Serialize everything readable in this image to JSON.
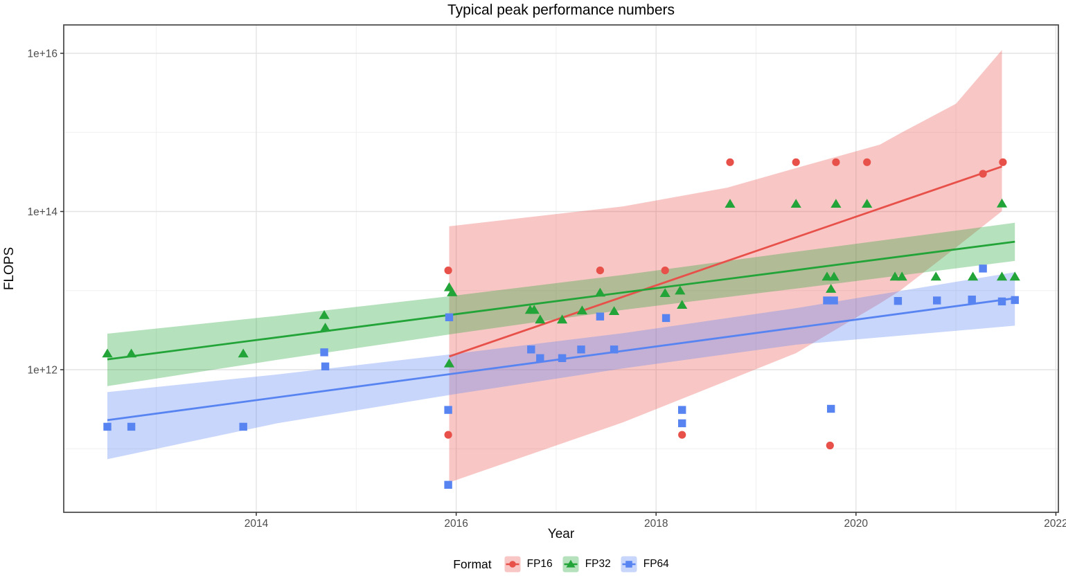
{
  "page": {
    "title": "Typical peak performance numbers"
  },
  "chart_data": {
    "type": "scatter",
    "title": "Typical peak performance numbers",
    "xlabel": "Year",
    "ylabel": "FLOPS",
    "x_ticks": [
      2014,
      2016,
      2018,
      2020,
      2022
    ],
    "x_minor": [
      2013,
      2015,
      2017,
      2019,
      2021
    ],
    "y_ticks": [
      {
        "label": "1e+12",
        "value": 1000000000000.0
      },
      {
        "label": "1e+14",
        "value": 100000000000000.0
      },
      {
        "label": "1e+16",
        "value": 1e+16
      }
    ],
    "y_minor": [
      100000000000.0,
      10000000000000.0,
      1000000000000000.0
    ],
    "xlim": [
      2012.07,
      2022.03
    ],
    "ylim": [
      16000000000.0,
      2.3e+16
    ],
    "y_scale": "log10",
    "grid": true,
    "legend": {
      "title": "Format",
      "position": "bottom"
    },
    "series": [
      {
        "name": "FP16",
        "marker": "circle",
        "color": "#E8504A",
        "ribbon_color": "rgba(232,80,74,0.32)",
        "points": [
          [
            2015.92,
            18000000000000.0
          ],
          [
            2015.92,
            150000000000.0
          ],
          [
            2017.44,
            18000000000000.0
          ],
          [
            2018.09,
            18000000000000.0
          ],
          [
            2018.26,
            150000000000.0
          ],
          [
            2018.74,
            420000000000000.0
          ],
          [
            2019.4,
            420000000000000.0
          ],
          [
            2019.74,
            110000000000.0
          ],
          [
            2019.8,
            420000000000000.0
          ],
          [
            2020.11,
            420000000000000.0
          ],
          [
            2021.27,
            300000000000000.0
          ],
          [
            2021.47,
            420000000000000.0
          ]
        ],
        "trend": {
          "x": [
            2015.93,
            2021.46
          ],
          "y": [
            1470000000000.0,
            370000000000000.0
          ]
        },
        "ribbon": {
          "x": [
            2015.93,
            2017.67,
            2018.71,
            2019.4,
            2020.24,
            2020.44,
            2021.0,
            2021.46
          ],
          "upper": [
            65000000000000.0,
            116000000000000.0,
            200000000000000.0,
            354000000000000.0,
            700000000000000.0,
            970000000000000.0,
            2300000000000000.0,
            1.1e+16
          ],
          "lower": [
            37500000000.0,
            216000000000.0,
            724000000000.0,
            1620000000000.0,
            6900000000000.0,
            9950000000000.0,
            35000000000000.0,
            101000000000000.0
          ]
        }
      },
      {
        "name": "FP32",
        "marker": "triangle",
        "color": "#22A438",
        "ribbon_color": "rgba(34,164,56,0.33)",
        "points": [
          [
            2012.51,
            1600000000000.0
          ],
          [
            2012.75,
            1600000000000.0
          ],
          [
            2013.87,
            1600000000000.0
          ],
          [
            2014.68,
            4900000000000.0
          ],
          [
            2014.69,
            3400000000000.0
          ],
          [
            2015.93,
            11000000000000.0
          ],
          [
            2015.96,
            9500000000000.0
          ],
          [
            2015.93,
            1200000000000.0
          ],
          [
            2016.74,
            5700000000000.0
          ],
          [
            2016.78,
            5700000000000.0
          ],
          [
            2016.84,
            4300000000000.0
          ],
          [
            2017.06,
            4300000000000.0
          ],
          [
            2017.26,
            5600000000000.0
          ],
          [
            2017.44,
            9400000000000.0
          ],
          [
            2017.58,
            5500000000000.0
          ],
          [
            2018.09,
            9300000000000.0
          ],
          [
            2018.24,
            10000000000000.0
          ],
          [
            2018.26,
            6600000000000.0
          ],
          [
            2018.74,
            125000000000000.0
          ],
          [
            2019.4,
            125000000000000.0
          ],
          [
            2019.71,
            15000000000000.0
          ],
          [
            2019.75,
            10500000000000.0
          ],
          [
            2019.78,
            15000000000000.0
          ],
          [
            2019.8,
            125000000000000.0
          ],
          [
            2020.11,
            125000000000000.0
          ],
          [
            2020.39,
            15000000000000.0
          ],
          [
            2020.46,
            15000000000000.0
          ],
          [
            2020.8,
            15000000000000.0
          ],
          [
            2021.17,
            15000000000000.0
          ],
          [
            2021.46,
            126000000000000.0
          ],
          [
            2021.46,
            15000000000000.0
          ],
          [
            2021.59,
            15000000000000.0
          ]
        ],
        "trend": {
          "x": [
            2012.51,
            2021.59
          ],
          "y": [
            1350000000000.0,
            41500000000000.0
          ]
        },
        "ribbon": {
          "x": [
            2012.51,
            2014.21,
            2015.94,
            2017.67,
            2019.4,
            2021.59
          ],
          "upper": [
            2850000000000.0,
            4800000000000.0,
            8500000000000.0,
            15800000000000.0,
            31000000000000.0,
            72000000000000.0
          ],
          "lower": [
            620000000000.0,
            1330000000000.0,
            2800000000000.0,
            5700000000000.0,
            10600000000000.0,
            23700000000000.0
          ]
        }
      },
      {
        "name": "FP64",
        "marker": "square",
        "color": "#5884F2",
        "ribbon_color": "rgba(88,132,242,0.33)",
        "points": [
          [
            2012.51,
            190000000000.0
          ],
          [
            2012.75,
            190000000000.0
          ],
          [
            2013.87,
            190000000000.0
          ],
          [
            2014.68,
            1660000000000.0
          ],
          [
            2014.69,
            1100000000000.0
          ],
          [
            2015.93,
            4600000000000.0
          ],
          [
            2015.92,
            310000000000.0
          ],
          [
            2015.92,
            35000000000.0
          ],
          [
            2016.75,
            1800000000000.0
          ],
          [
            2016.84,
            1400000000000.0
          ],
          [
            2017.06,
            1400000000000.0
          ],
          [
            2017.25,
            1800000000000.0
          ],
          [
            2017.44,
            4700000000000.0
          ],
          [
            2017.58,
            1800000000000.0
          ],
          [
            2018.1,
            4500000000000.0
          ],
          [
            2018.26,
            310000000000.0
          ],
          [
            2018.26,
            210000000000.0
          ],
          [
            2019.71,
            7500000000000.0
          ],
          [
            2019.75,
            320000000000.0
          ],
          [
            2019.78,
            7500000000000.0
          ],
          [
            2020.42,
            7400000000000.0
          ],
          [
            2020.81,
            7500000000000.0
          ],
          [
            2021.16,
            7700000000000.0
          ],
          [
            2021.27,
            19000000000000.0
          ],
          [
            2021.46,
            7300000000000.0
          ],
          [
            2021.59,
            7600000000000.0
          ]
        ],
        "trend": {
          "x": [
            2012.51,
            2021.59
          ],
          "y": [
            230000000000.0,
            8000000000000.0
          ]
        },
        "ribbon": {
          "x": [
            2012.51,
            2014.21,
            2015.94,
            2017.67,
            2019.4,
            2021.59
          ],
          "upper": [
            520000000000.0,
            870000000000.0,
            1560000000000.0,
            2900000000000.0,
            6000000000000.0,
            17100000000000.0
          ],
          "lower": [
            74000000000.0,
            210000000000.0,
            480000000000.0,
            1040000000000.0,
            2070000000000.0,
            3600000000000.0
          ]
        }
      }
    ]
  }
}
